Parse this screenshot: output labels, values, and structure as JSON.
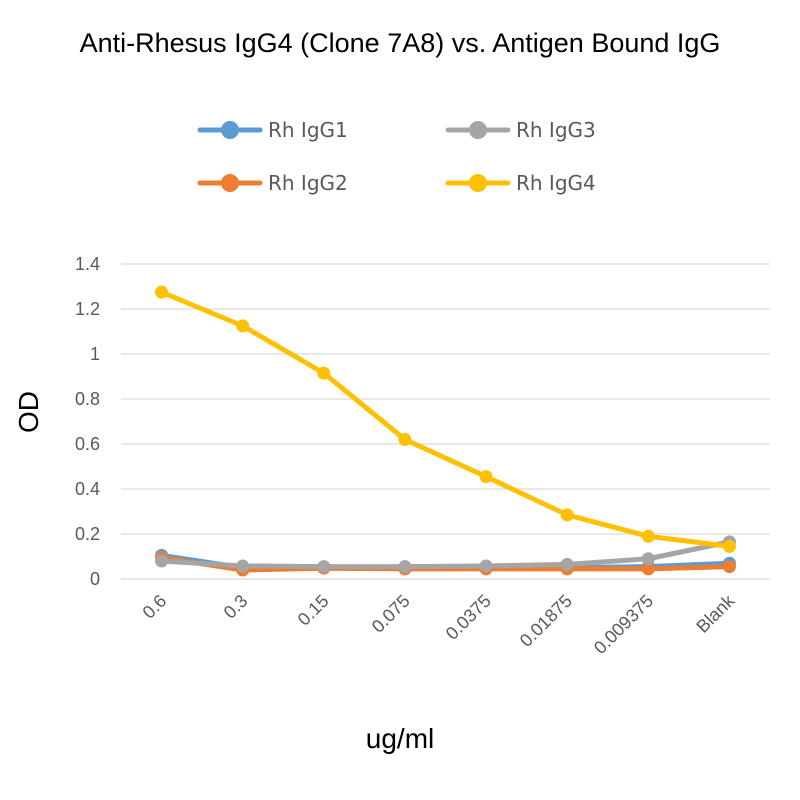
{
  "chart_data": {
    "type": "line",
    "title": "Anti-Rhesus IgG4 (Clone 7A8) vs. Antigen Bound IgG",
    "xlabel": "ug/ml",
    "ylabel": "OD",
    "categories": [
      "0.6",
      "0.3",
      "0.15",
      "0.075",
      "0.0375",
      "0.01875",
      "0.009375",
      "Blank"
    ],
    "ylim": [
      0,
      1.4
    ],
    "yticks": [
      "0",
      "0.2",
      "0.4",
      "0.6",
      "0.8",
      "1",
      "1.2",
      "1.4"
    ],
    "grid": true,
    "legend_position": "top",
    "series": [
      {
        "name": "Rh IgG1",
        "color": "#5b9bd5",
        "values": [
          0.105,
          0.05,
          0.05,
          0.05,
          0.05,
          0.05,
          0.055,
          0.07
        ]
      },
      {
        "name": "Rh IgG2",
        "color": "#ed7d31",
        "values": [
          0.095,
          0.04,
          0.048,
          0.045,
          0.045,
          0.045,
          0.045,
          0.055
        ]
      },
      {
        "name": "Rh IgG3",
        "color": "#a5a5a5",
        "values": [
          0.08,
          0.058,
          0.055,
          0.055,
          0.058,
          0.065,
          0.09,
          0.165
        ]
      },
      {
        "name": "Rh IgG4",
        "color": "#ffc000",
        "values": [
          1.275,
          1.125,
          0.915,
          0.62,
          0.455,
          0.285,
          0.19,
          0.145
        ]
      }
    ]
  }
}
